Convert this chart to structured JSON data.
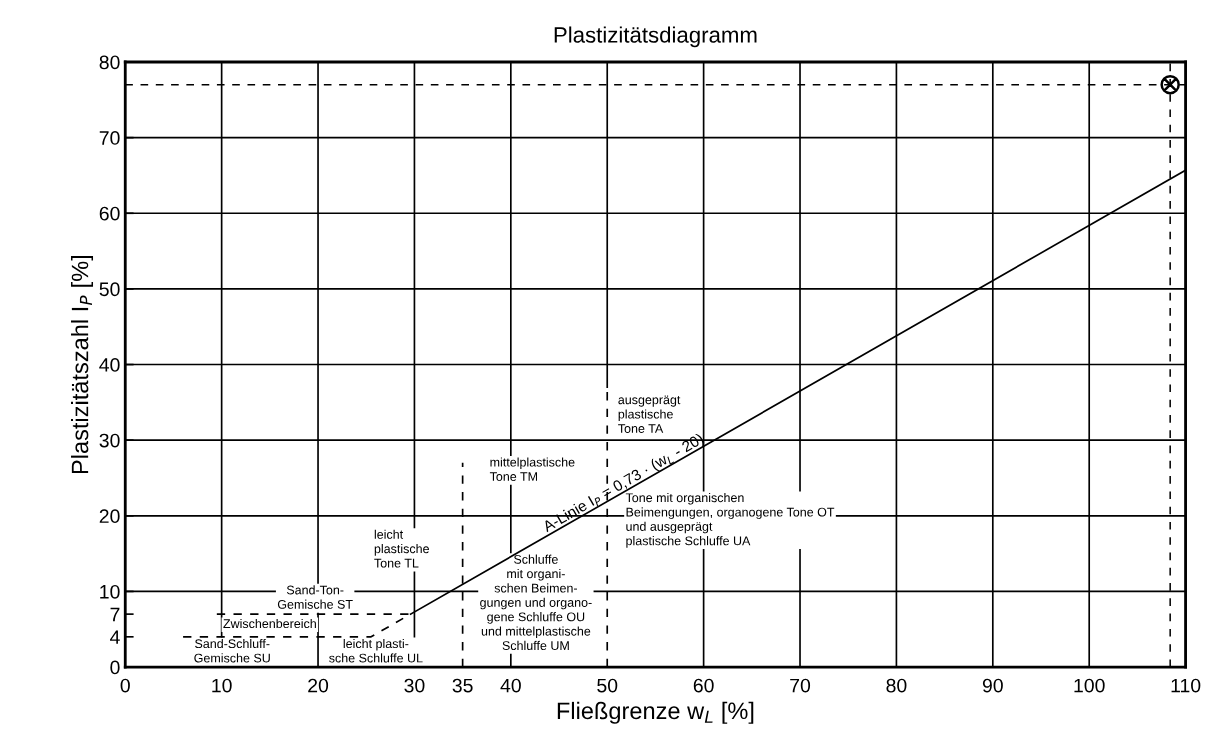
{
  "chart_data": {
    "type": "line",
    "title": "Plastizitätsdiagramm",
    "xlabel": "Fließgrenze w$_{L}$ [%]",
    "ylabel": "Plastizitätszahl I$_{P}$ [%]",
    "xlim": [
      0,
      110
    ],
    "ylim": [
      0,
      80
    ],
    "xticks": [
      0,
      10,
      20,
      30,
      35,
      40,
      50,
      60,
      70,
      80,
      90,
      100,
      110
    ],
    "yticks": [
      0,
      4,
      7,
      10,
      20,
      30,
      40,
      50,
      60,
      70,
      80
    ],
    "grid": true,
    "legend": false,
    "series": [
      {
        "name": "A-Linie I$_{P}$ = 0,73 · (w$_{L}$ - 20)",
        "color": "#000000",
        "line_style": "solid",
        "x": [
          29.6,
          110
        ],
        "values": [
          7.0,
          65.7
        ]
      },
      {
        "color": "#000000",
        "line_style": "dashed",
        "x": [
          6,
          25.5,
          29.6
        ],
        "values": [
          4,
          4,
          7
        ]
      },
      {
        "color": "#000000",
        "line_style": "dashed",
        "x": [
          9.5,
          29.6
        ],
        "values": [
          7,
          7
        ]
      },
      {
        "color": "#000000",
        "line_style": "dashed",
        "x": [
          35,
          35
        ],
        "values": [
          0,
          27
        ]
      },
      {
        "color": "#000000",
        "line_style": "dashed",
        "x": [
          50,
          50
        ],
        "values": [
          0,
          37
        ]
      },
      {
        "type": "scatter",
        "color": "#000000",
        "marker": "cross",
        "x": [
          108.4
        ],
        "values": [
          77
        ]
      }
    ],
    "ref_lines": [
      {
        "axis": "y",
        "value": 77,
        "color": "#000000",
        "line_style": "dashed"
      },
      {
        "axis": "x",
        "value": 108.4,
        "color": "#000000",
        "line_style": "dashed"
      }
    ],
    "annotations": [
      "Sand-Ton-\nGemische ST",
      "Zwischenbereich",
      "Sand-Schluff-\nGemische SU",
      "leicht plasti-\nsche Schluffe UL",
      "leicht\nplastische\nTone TL",
      "mittelplastische\nTone TM",
      "ausgeprägt\nplastische\nTone TA",
      "Tone mit organischen\nBeimengungen, organogene Tone OT\nund ausgeprägt\nplastische Schluffe UA",
      "Schluffe\nmit organi-\nschen Beimen-\ngungen und organo-\ngene Schluffe OU\nund mittelplastische\nSchluffe UM"
    ]
  }
}
